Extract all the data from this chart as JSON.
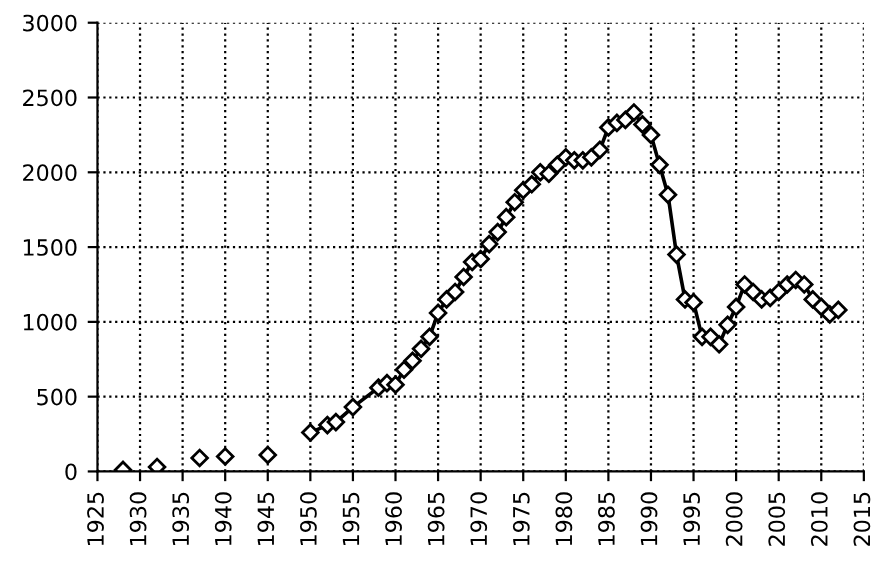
{
  "chart_data": {
    "type": "line",
    "xlim": [
      1925,
      2015
    ],
    "xticks": [
      1925,
      1930,
      1935,
      1940,
      1945,
      1950,
      1955,
      1960,
      1965,
      1970,
      1975,
      1980,
      1985,
      1990,
      1995,
      2000,
      2005,
      2010,
      2015
    ],
    "ylim": [
      0,
      3000
    ],
    "yticks": [
      0,
      500,
      1000,
      1500,
      2000,
      2500,
      3000
    ],
    "grid": true,
    "marker": "diamond",
    "line_style": "solid",
    "series": [
      {
        "type": "scatter",
        "color": "#000000",
        "x": [
          1928,
          1932,
          1937,
          1940,
          1945
        ],
        "values": [
          10,
          30,
          90,
          100,
          110
        ]
      },
      {
        "color": "#000000",
        "x": [
          1950,
          1952,
          1953,
          1955,
          1958,
          1959,
          1960,
          1961,
          1962,
          1963,
          1964,
          1965,
          1966,
          1967,
          1968,
          1969,
          1970,
          1971,
          1972,
          1973,
          1974,
          1975,
          1976,
          1977,
          1978,
          1979,
          1980,
          1981,
          1982,
          1983,
          1984,
          1985,
          1986,
          1987,
          1988,
          1989,
          1990,
          1991,
          1992,
          1993,
          1994,
          1995,
          1996,
          1997,
          1998,
          1999,
          2000,
          2001,
          2002,
          2003,
          2004,
          2005,
          2006,
          2007,
          2008,
          2009,
          2010,
          2011,
          2012
        ],
        "values": [
          260,
          310,
          330,
          430,
          560,
          590,
          580,
          680,
          740,
          820,
          900,
          1060,
          1150,
          1200,
          1300,
          1400,
          1420,
          1520,
          1600,
          1700,
          1800,
          1880,
          1920,
          2000,
          1990,
          2050,
          2100,
          2080,
          2080,
          2100,
          2150,
          2300,
          2330,
          2350,
          2400,
          2320,
          2250,
          2050,
          1850,
          1450,
          1150,
          1130,
          900,
          900,
          850,
          980,
          1100,
          1250,
          1200,
          1150,
          1160,
          1200,
          1250,
          1280,
          1250,
          1150,
          1100,
          1050,
          1080
        ]
      }
    ]
  }
}
